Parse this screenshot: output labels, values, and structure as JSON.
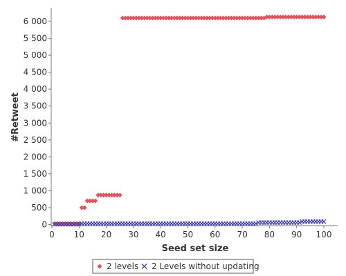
{
  "chart_data": {
    "type": "scatter",
    "title": "",
    "xlabel": "Seed set size",
    "ylabel": "#Retweet",
    "xlim": [
      0,
      105
    ],
    "ylim": [
      0,
      6400
    ],
    "x_ticks": [
      0,
      10,
      20,
      30,
      40,
      50,
      60,
      70,
      80,
      90,
      100
    ],
    "y_ticks": [
      0,
      500,
      1000,
      1500,
      2000,
      2500,
      3000,
      3500,
      4000,
      4500,
      5000,
      5500,
      6000
    ],
    "x_tick_labels": [
      "0",
      "10",
      "20",
      "30",
      "40",
      "50",
      "60",
      "70",
      "80",
      "90",
      "100"
    ],
    "y_tick_labels": [
      "0",
      "500",
      "1 000",
      "1 500",
      "2 000",
      "2 500",
      "3 000",
      "3 500",
      "4 000",
      "4 500",
      "5 000",
      "5 500",
      "6 000"
    ],
    "grid": false,
    "legend_position": "bottom-center",
    "series": [
      {
        "name": "2 levels",
        "marker": "diamond",
        "color": "#e8505b",
        "segments": [
          {
            "from": 1,
            "to": 10,
            "y": 30
          },
          {
            "from": 11,
            "to": 12,
            "y": 500
          },
          {
            "from": 13,
            "to": 16,
            "y": 700
          },
          {
            "from": 17,
            "to": 25,
            "y": 870
          },
          {
            "from": 26,
            "to": 78,
            "y": 6100
          },
          {
            "from": 79,
            "to": 100,
            "y": 6130
          }
        ]
      },
      {
        "name": "2 Levels without updating",
        "marker": "x",
        "color": "#3a3ab8",
        "segments": [
          {
            "from": 1,
            "to": 10,
            "y": 10
          },
          {
            "from": 11,
            "to": 75,
            "y": 30
          },
          {
            "from": 76,
            "to": 91,
            "y": 60
          },
          {
            "from": 92,
            "to": 100,
            "y": 90
          }
        ]
      }
    ]
  }
}
